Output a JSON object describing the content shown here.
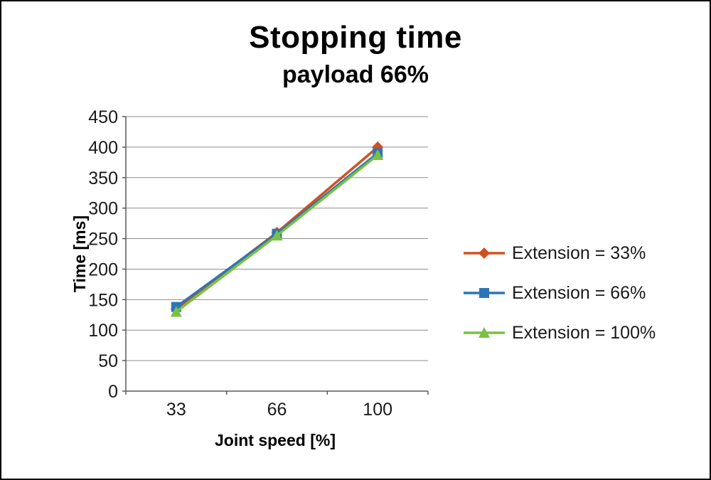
{
  "chart_data": {
    "type": "line",
    "title": "Stopping time",
    "subtitle": "payload 66%",
    "xlabel": "Joint speed [%]",
    "ylabel": "Time [ms]",
    "categories": [
      "33",
      "66",
      "100"
    ],
    "series": [
      {
        "name": "Extension = 33%",
        "values": [
          135,
          260,
          400
        ],
        "color": "#d1511e",
        "marker": "diamond"
      },
      {
        "name": "Extension = 66%",
        "values": [
          138,
          258,
          390
        ],
        "color": "#2e75b6",
        "marker": "square"
      },
      {
        "name": "Extension = 100%",
        "values": [
          130,
          255,
          387
        ],
        "color": "#7ac143",
        "marker": "triangle"
      }
    ],
    "ylim": [
      0,
      450
    ],
    "ytick_step": 50,
    "grid": true,
    "legend_position": "right",
    "axis_color": "#595959",
    "grid_color": "#8e8e8e",
    "tick_label_color": "#1a1a1a"
  }
}
